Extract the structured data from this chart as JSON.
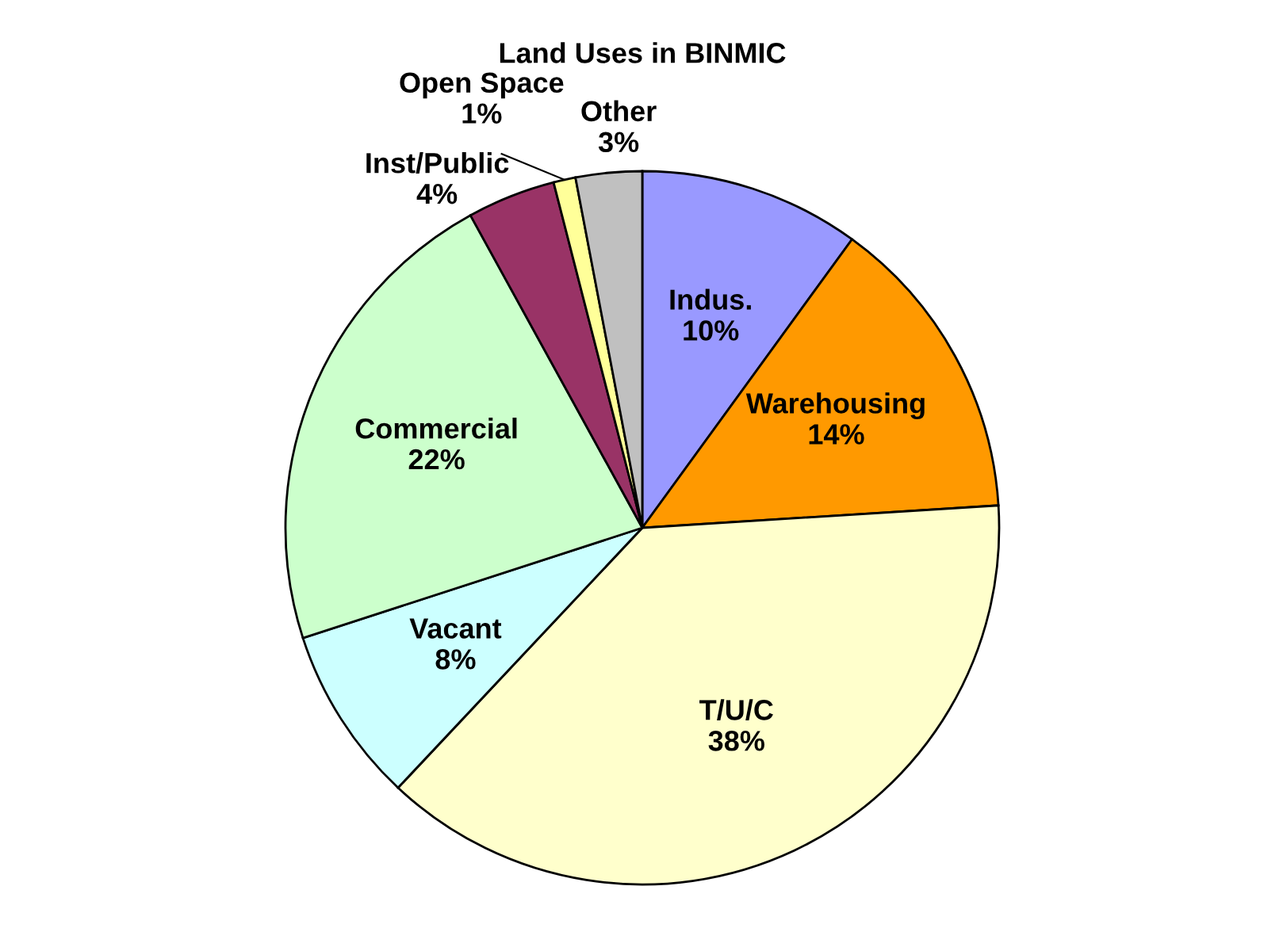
{
  "chart_data": {
    "type": "pie",
    "title": "Land Uses in BINMIC",
    "categories": [
      "Indus.",
      "Warehousing",
      "T/U/C",
      "Vacant",
      "Commercial",
      "Inst/Public",
      "Open Space",
      "Other"
    ],
    "values": [
      10,
      14,
      38,
      8,
      22,
      4,
      1,
      3
    ],
    "colors": [
      "#9999ff",
      "#ff9900",
      "#ffffcc",
      "#ccffff",
      "#ccffcc",
      "#993366",
      "#ffff99",
      "#c0c0c0"
    ],
    "value_labels": [
      "10%",
      "14%",
      "38%",
      "8%",
      "22%",
      "4%",
      "1%",
      "3%"
    ],
    "legend": false
  }
}
